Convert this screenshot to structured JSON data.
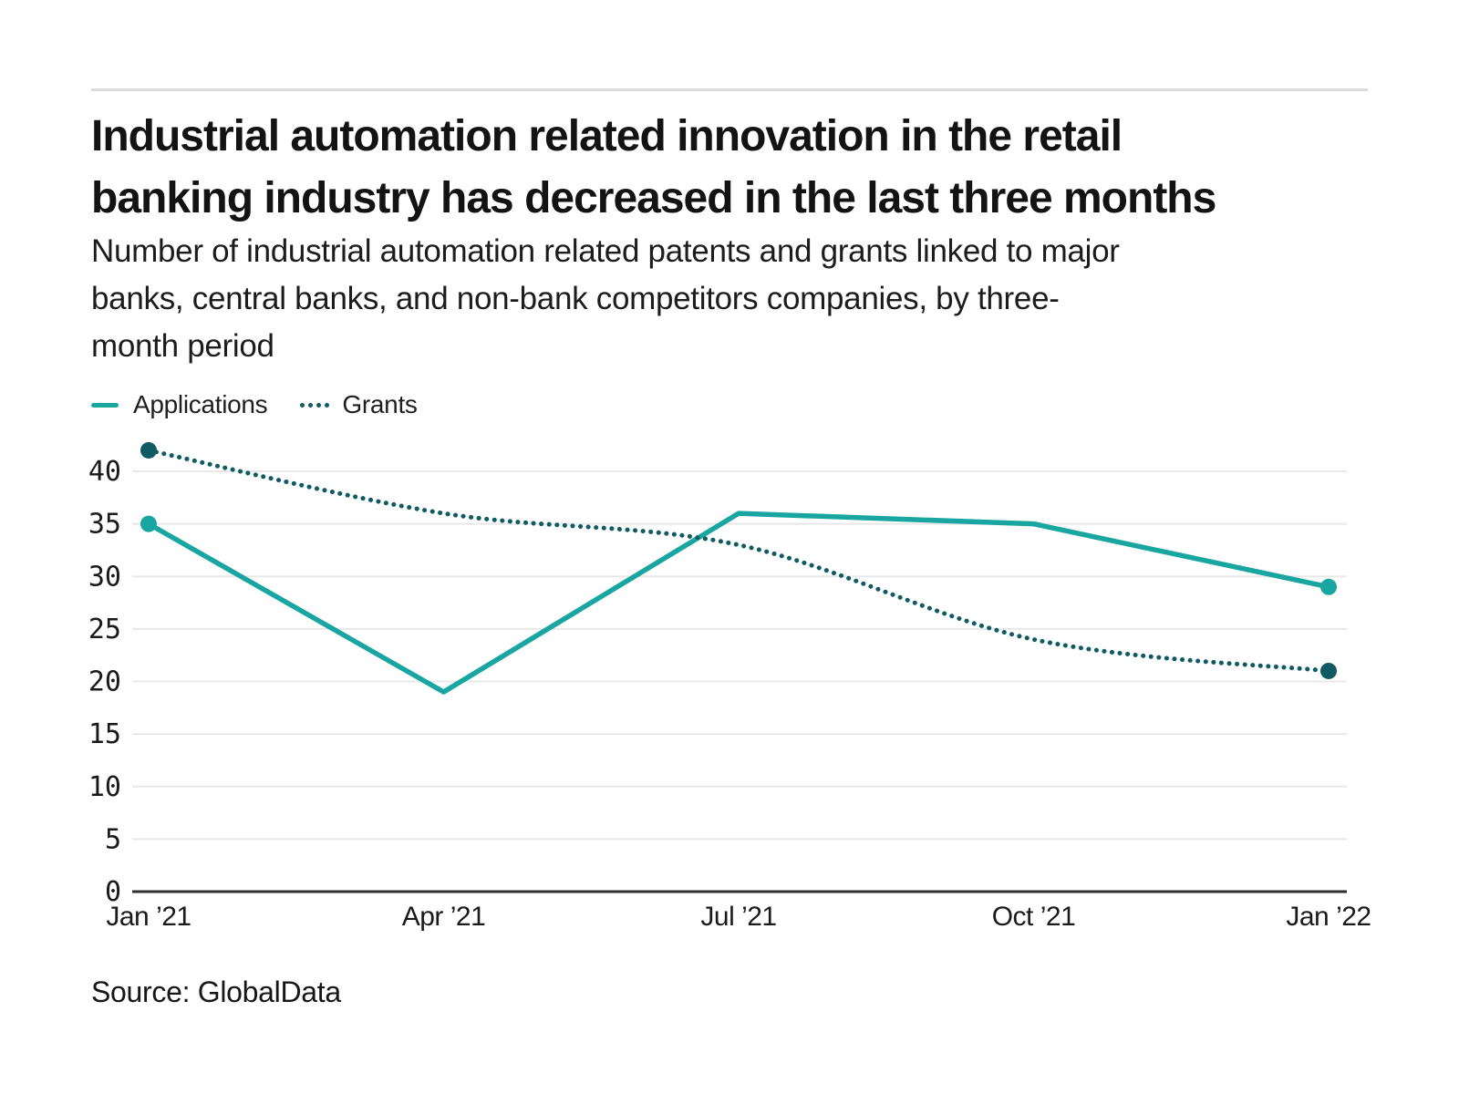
{
  "page": {
    "title_lines": [
      "Industrial automation related innovation in the retail",
      "banking industry has decreased in the last three months"
    ],
    "subtitle_lines": [
      "Number of industrial automation related patents and grants linked to major",
      "banks, central banks, and non-bank competitors companies, by three-",
      "month period"
    ],
    "source": "Source: GlobalData"
  },
  "legend": {
    "items": [
      {
        "label": "Applications",
        "style": "solid",
        "color": "#19A5A0"
      },
      {
        "label": "Grants",
        "style": "dotted",
        "color": "#105A63"
      }
    ]
  },
  "chart_data": {
    "type": "line",
    "title": "Industrial automation related innovation in the retail banking industry has decreased in the last three months",
    "subtitle": "Number of industrial automation related patents and grants linked to major banks, central banks, and non-bank competitors companies, by three-month period",
    "source": "Source: GlobalData",
    "categories": [
      "Jan ’21",
      "Apr ’21",
      "Jul ’21",
      "Oct ’21",
      "Jan ’22"
    ],
    "series": [
      {
        "name": "Applications",
        "values": [
          35,
          19,
          36,
          35,
          29
        ],
        "color": "#19A5A0",
        "line_style": "solid"
      },
      {
        "name": "Grants",
        "values": [
          42,
          36,
          33,
          24,
          21
        ],
        "color": "#105A63",
        "line_style": "dotted"
      }
    ],
    "xlabel": "",
    "ylabel": "",
    "ylim": [
      0,
      40
    ],
    "ytick_step": 5,
    "yticks": [
      0,
      5,
      10,
      15,
      20,
      25,
      30,
      35,
      40
    ],
    "grid": true,
    "legend_position": "top-left",
    "marker_note": "filled circle markers on first and last point of each series"
  },
  "colors": {
    "grid": "#e8e8e8",
    "axis": "#2e2e2e",
    "text": "#1a1a1a",
    "rule": "#dcdcdc"
  }
}
